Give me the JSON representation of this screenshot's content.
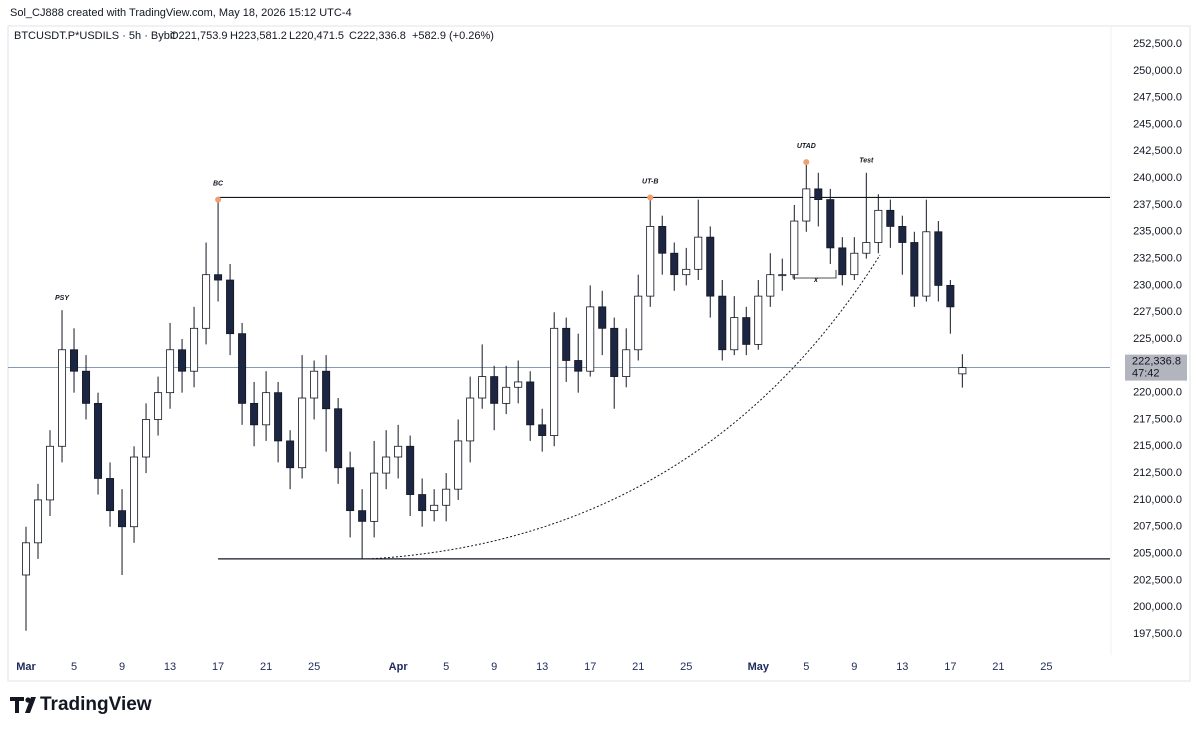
{
  "watermark": "Sol_CJ888 created with TradingView.com, May 18, 2026 15:12 UTC-4",
  "footer": {
    "brand": "TradingView"
  },
  "chart_data": {
    "type": "candlestick",
    "legend": {
      "symbol": "BTCUSDT.P*USDILS · 5h · Bybit",
      "open": "O221,753.9",
      "high": "H223,581.2",
      "low": "L220,471.5",
      "close": "C222,336.8",
      "change": "+582.9 (+0.26%)"
    },
    "up_color": "#ffffff",
    "down_color": "#1c2541",
    "wick_color": "#131722",
    "level_color": "#131722",
    "price_line_color": "#5b7a99",
    "grid": false,
    "xlim": [
      -1.5,
      90.3
    ],
    "ylim": [
      195540,
      254000
    ],
    "xticks": [
      {
        "value": 0,
        "label": "Mar"
      },
      {
        "value": 4,
        "label": "5"
      },
      {
        "value": 8,
        "label": "9"
      },
      {
        "value": 12,
        "label": "13"
      },
      {
        "value": 16,
        "label": "17"
      },
      {
        "value": 20,
        "label": "21"
      },
      {
        "value": 24,
        "label": "25"
      },
      {
        "value": 31,
        "label": "Apr"
      },
      {
        "value": 35,
        "label": "5"
      },
      {
        "value": 39,
        "label": "9"
      },
      {
        "value": 43,
        "label": "13"
      },
      {
        "value": 47,
        "label": "17"
      },
      {
        "value": 51,
        "label": "21"
      },
      {
        "value": 55,
        "label": "25"
      },
      {
        "value": 61,
        "label": "May"
      },
      {
        "value": 65,
        "label": "5"
      },
      {
        "value": 69,
        "label": "9"
      },
      {
        "value": 73,
        "label": "13"
      },
      {
        "value": 77,
        "label": "17"
      },
      {
        "value": 81,
        "label": "21"
      },
      {
        "value": 85,
        "label": "25"
      }
    ],
    "yticks": [
      {
        "value": 197500,
        "label": "197,500.0"
      },
      {
        "value": 200000,
        "label": "200,000.0"
      },
      {
        "value": 202500,
        "label": "202,500.0"
      },
      {
        "value": 205000,
        "label": "205,000.0"
      },
      {
        "value": 207500,
        "label": "207,500.0"
      },
      {
        "value": 210000,
        "label": "210,000.0"
      },
      {
        "value": 212500,
        "label": "212,500.0"
      },
      {
        "value": 215000,
        "label": "215,000.0"
      },
      {
        "value": 217500,
        "label": "217,500.0"
      },
      {
        "value": 220000,
        "label": "220,000.0"
      },
      {
        "value": 222500,
        "label": "222,500.0"
      },
      {
        "value": 225000,
        "label": "225,000.0"
      },
      {
        "value": 227500,
        "label": "227,500.0"
      },
      {
        "value": 230000,
        "label": "230,000.0"
      },
      {
        "value": 232500,
        "label": "232,500.0"
      },
      {
        "value": 235000,
        "label": "235,000.0"
      },
      {
        "value": 237500,
        "label": "237,500.0"
      },
      {
        "value": 240000,
        "label": "240,000.0"
      },
      {
        "value": 242500,
        "label": "242,500.0"
      },
      {
        "value": 245000,
        "label": "245,000.0"
      },
      {
        "value": 247500,
        "label": "247,500.0"
      },
      {
        "value": 250000,
        "label": "250,000.0"
      },
      {
        "value": 252500,
        "label": "252,500.0"
      }
    ],
    "x": [
      0,
      1,
      2,
      3,
      4,
      5,
      6,
      7,
      8,
      9,
      10,
      11,
      12,
      13,
      14,
      15,
      16,
      17,
      18,
      19,
      20,
      21,
      22,
      23,
      24,
      25,
      26,
      27,
      28,
      29,
      30,
      31,
      32,
      33,
      34,
      35,
      36,
      37,
      38,
      39,
      40,
      41,
      42,
      43,
      44,
      45,
      46,
      47,
      48,
      49,
      50,
      51,
      52,
      53,
      54,
      55,
      56,
      57,
      58,
      59,
      60,
      61,
      62,
      63,
      64,
      65,
      66,
      67,
      68,
      69,
      70,
      71,
      72,
      73,
      74,
      75,
      76,
      77,
      78
    ],
    "open": [
      203000,
      206000,
      210000,
      215000,
      224000,
      222000,
      219000,
      212000,
      209000,
      207500,
      214000,
      217500,
      220000,
      224000,
      222000,
      226000,
      231000,
      230500,
      225500,
      219000,
      217000,
      220000,
      215500,
      213000,
      219500,
      222000,
      218500,
      213000,
      209000,
      208000,
      212500,
      214000,
      215000,
      210500,
      209000,
      209500,
      211000,
      215500,
      219500,
      221500,
      219000,
      220500,
      221000,
      217000,
      216000,
      226000,
      223000,
      222000,
      228000,
      226000,
      221500,
      224000,
      229000,
      235500,
      233000,
      231000,
      231500,
      234500,
      229000,
      224000,
      227000,
      224500,
      229000,
      231000,
      231000,
      236000,
      239000,
      238000,
      233500,
      231000,
      233000,
      234000,
      237000,
      235500,
      234000,
      229000,
      235000,
      230000,
      221753.9
    ],
    "high": [
      207500,
      211500,
      216500,
      227700,
      226000,
      223500,
      220000,
      213500,
      211000,
      215000,
      219000,
      221500,
      226500,
      225000,
      228000,
      234000,
      238000,
      232000,
      226500,
      221000,
      222000,
      221000,
      216500,
      223500,
      223000,
      223500,
      219500,
      214500,
      211000,
      215500,
      216500,
      217000,
      216000,
      212000,
      211000,
      212500,
      217500,
      221500,
      224500,
      222500,
      222500,
      223000,
      222000,
      218500,
      227500,
      227000,
      225500,
      230000,
      229500,
      227000,
      226000,
      231000,
      238200,
      236500,
      234000,
      233500,
      238000,
      235500,
      230500,
      229000,
      228000,
      230500,
      233000,
      232500,
      237500,
      241500,
      240500,
      239000,
      234500,
      234500,
      240500,
      238500,
      238000,
      236500,
      235000,
      238000,
      236000,
      230500,
      223581.2
    ],
    "low": [
      197800,
      204500,
      208500,
      213500,
      220000,
      217500,
      210500,
      207500,
      203000,
      206000,
      212500,
      216000,
      218500,
      220000,
      220500,
      224500,
      228500,
      223500,
      217000,
      215000,
      215500,
      213500,
      211000,
      212000,
      217500,
      214500,
      211500,
      206500,
      204500,
      206500,
      211000,
      212000,
      208500,
      207500,
      208000,
      208000,
      210000,
      213500,
      218500,
      216500,
      218000,
      219000,
      215500,
      214500,
      215000,
      221000,
      220000,
      221500,
      223500,
      218500,
      220500,
      223000,
      228000,
      231000,
      229500,
      230000,
      230500,
      227000,
      223000,
      223500,
      223500,
      224000,
      228000,
      229500,
      230500,
      235000,
      235500,
      232000,
      230000,
      230500,
      232500,
      233000,
      233500,
      231000,
      228000,
      228500,
      228500,
      225500,
      220471.5
    ],
    "close": [
      206000,
      210000,
      215000,
      224000,
      222000,
      219000,
      212000,
      209000,
      207500,
      214000,
      217500,
      220000,
      224000,
      222000,
      226000,
      231000,
      230500,
      225500,
      219000,
      217000,
      220000,
      215500,
      213000,
      219500,
      222000,
      218500,
      213000,
      209000,
      208000,
      212500,
      214000,
      215000,
      210500,
      209000,
      209500,
      211000,
      215500,
      219500,
      221500,
      219000,
      220500,
      221000,
      217000,
      216000,
      226000,
      223000,
      222000,
      228000,
      226000,
      221500,
      224000,
      229000,
      235500,
      233000,
      231000,
      231500,
      234500,
      229000,
      224000,
      227000,
      224500,
      229000,
      231000,
      231000,
      236000,
      239000,
      238000,
      233500,
      231000,
      233000,
      234000,
      237000,
      235500,
      234000,
      229000,
      235000,
      230000,
      228000,
      222336.8
    ],
    "levels": [
      {
        "value": 238200,
        "from": 16
      },
      {
        "value": 204500,
        "from": 16
      }
    ],
    "annotations": [
      {
        "text": "PSY",
        "x": 3,
        "y": 227700,
        "dot": false
      },
      {
        "text": "BC",
        "x": 16,
        "y": 238000,
        "dot": true
      },
      {
        "text": "UT-B",
        "x": 52,
        "y": 238200,
        "dot": true
      },
      {
        "text": "UTAD",
        "x": 65,
        "y": 241500,
        "dot": true
      },
      {
        "text": "Test",
        "x": 70,
        "y": 240500,
        "dot": false
      }
    ],
    "dot_color": "#f0a070",
    "last_price": {
      "label": "222,336.8",
      "countdown": "47:42"
    }
  }
}
